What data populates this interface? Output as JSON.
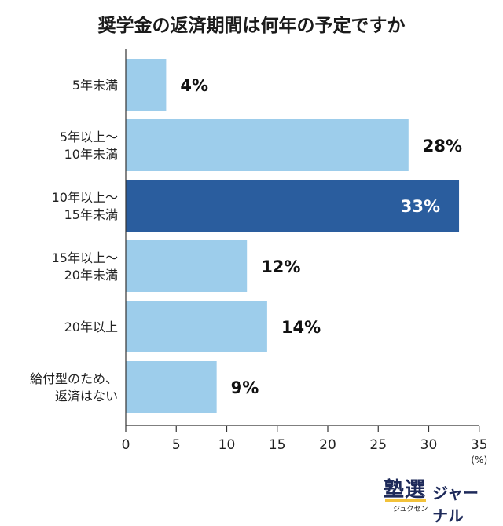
{
  "chart_data": {
    "type": "bar",
    "orientation": "horizontal",
    "title": "奨学金の返済期間は何年の予定ですか",
    "categories": [
      [
        "5年未満"
      ],
      [
        "5年以上〜",
        "10年未満"
      ],
      [
        "10年以上〜",
        "15年未満"
      ],
      [
        "15年以上〜",
        "20年未満"
      ],
      [
        "20年以上"
      ],
      [
        "給付型のため、",
        "返済はない"
      ]
    ],
    "values": [
      4,
      28,
      33,
      12,
      14,
      9
    ],
    "value_labels": [
      "4%",
      "28%",
      "33%",
      "12%",
      "14%",
      "9%"
    ],
    "highlight_index": 2,
    "xlim": [
      0,
      35
    ],
    "xticks": [
      0,
      5,
      10,
      15,
      20,
      25,
      30,
      35
    ],
    "xunit": "(%)",
    "grid": false,
    "colors": {
      "bar": "#9dcdeb",
      "highlight": "#2a5d9e"
    }
  },
  "branding": {
    "logo_mark": "塾選",
    "logo_sub": "ジュクセン",
    "logo_word": "ジャーナル"
  }
}
